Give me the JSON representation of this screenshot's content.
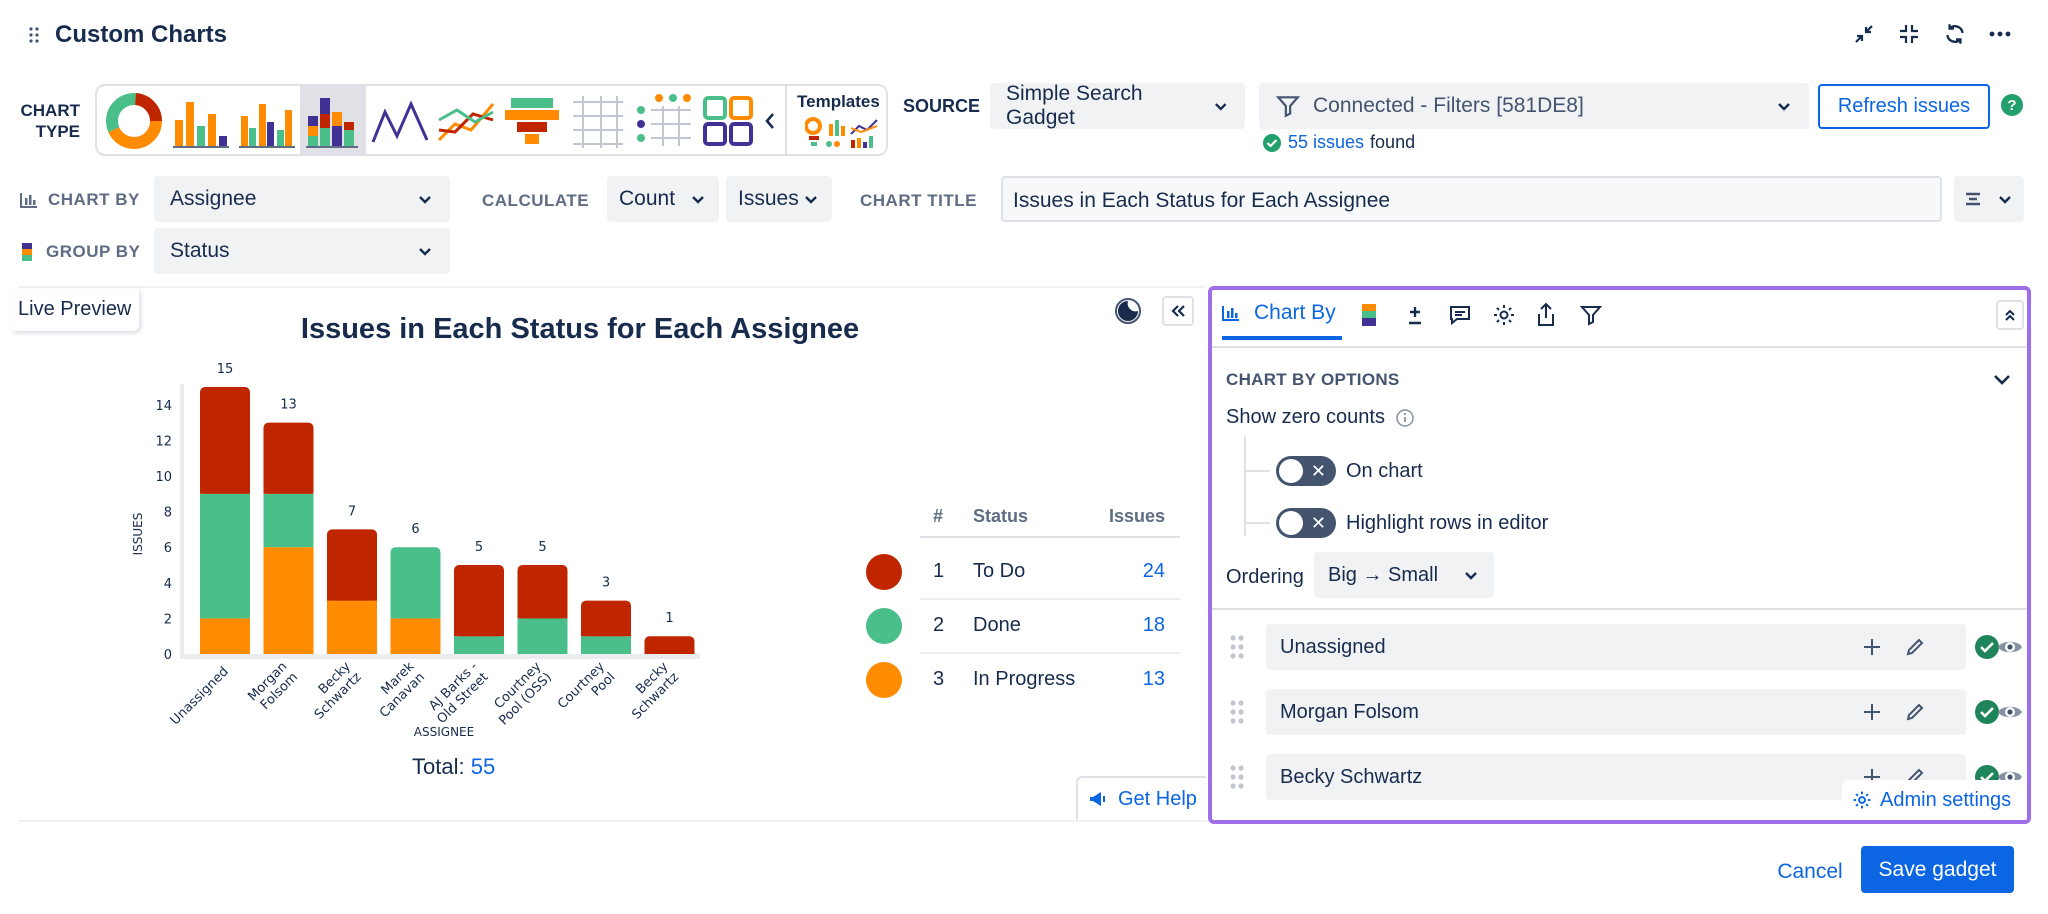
{
  "header": {
    "title": "Custom Charts",
    "actions": [
      "minimize-icon",
      "collapse-icon",
      "refresh-icon",
      "more-icon"
    ]
  },
  "chart_type": {
    "label_line1": "CHART",
    "label_line2": "TYPE",
    "templates_label": "Templates"
  },
  "source": {
    "label": "SOURCE",
    "value": "Simple Search Gadget",
    "filter": "Connected - Filters [581DE8]",
    "issues_count": "55 issues",
    "issues_found": "found",
    "refresh_label": "Refresh issues"
  },
  "chart_by": {
    "label": "CHART BY",
    "value": "Assignee"
  },
  "group_by": {
    "label": "GROUP BY",
    "value": "Status"
  },
  "calculate": {
    "label": "CALCULATE",
    "value": "Count",
    "unit": "Issues"
  },
  "chart_title": {
    "label": "CHART TITLE",
    "value": "Issues in Each Status for Each Assignee"
  },
  "preview": {
    "label": "Live Preview",
    "total_label": "Total:",
    "total_value": "55",
    "get_help": "Get Help"
  },
  "legend_table": {
    "headers": [
      "#",
      "Status",
      "Issues"
    ],
    "rows": [
      {
        "num": "1",
        "status": "To Do",
        "issues": "24",
        "color": "#bf2600"
      },
      {
        "num": "2",
        "status": "Done",
        "issues": "18",
        "color": "#4bbf8a"
      },
      {
        "num": "3",
        "status": "In Progress",
        "issues": "13",
        "color": "#ff8b00"
      }
    ]
  },
  "chart_data": {
    "type": "bar",
    "stacked": true,
    "title": "Issues in Each Status for Each Assignee",
    "xlabel": "ASSIGNEE",
    "ylabel": "ISSUES",
    "ylim": [
      0,
      15
    ],
    "yticks": [
      0,
      2,
      4,
      6,
      8,
      10,
      12,
      14
    ],
    "categories": [
      "Unassigned",
      "Morgan Folsom",
      "Becky Schwartz",
      "Marek Canavan",
      "AJ Barks - Old Street",
      "Courtney Pool (OSS)",
      "Courtney Pool",
      "Becky Schwartz"
    ],
    "category_lines": [
      [
        "Unassigned"
      ],
      [
        "Morgan",
        "Folsom"
      ],
      [
        "Becky",
        "Schwartz"
      ],
      [
        "Marek",
        "Canavan"
      ],
      [
        "AJ Barks -",
        "Old Street"
      ],
      [
        "Courtney",
        "Pool (OSS)"
      ],
      [
        "Courtney",
        "Pool"
      ],
      [
        "Becky",
        "Schwartz"
      ]
    ],
    "totals": [
      "15",
      "13",
      "7",
      "6",
      "5",
      "5",
      "3",
      "1"
    ],
    "series": [
      {
        "name": "In Progress",
        "color": "#ff8b00",
        "values": [
          2,
          6,
          3,
          2,
          0,
          0,
          0,
          0
        ]
      },
      {
        "name": "Done",
        "color": "#4bbf8a",
        "values": [
          7,
          3,
          0,
          4,
          1,
          2,
          1,
          0
        ]
      },
      {
        "name": "To Do",
        "color": "#bf2600",
        "values": [
          6,
          4,
          4,
          0,
          4,
          3,
          2,
          1
        ]
      }
    ]
  },
  "panel": {
    "tab_active": "Chart By",
    "section_title": "CHART BY OPTIONS",
    "show_zero_label": "Show zero counts",
    "on_chart_label": "On chart",
    "highlight_label": "Highlight rows in editor",
    "ordering_label": "Ordering",
    "ordering_value": "Big → Small",
    "items": [
      {
        "label": "Unassigned"
      },
      {
        "label": "Morgan Folsom"
      },
      {
        "label": "Becky Schwartz"
      }
    ],
    "admin_settings": "Admin settings",
    "accent": "#9f6ee8"
  },
  "footer": {
    "cancel": "Cancel",
    "save": "Save gadget"
  }
}
